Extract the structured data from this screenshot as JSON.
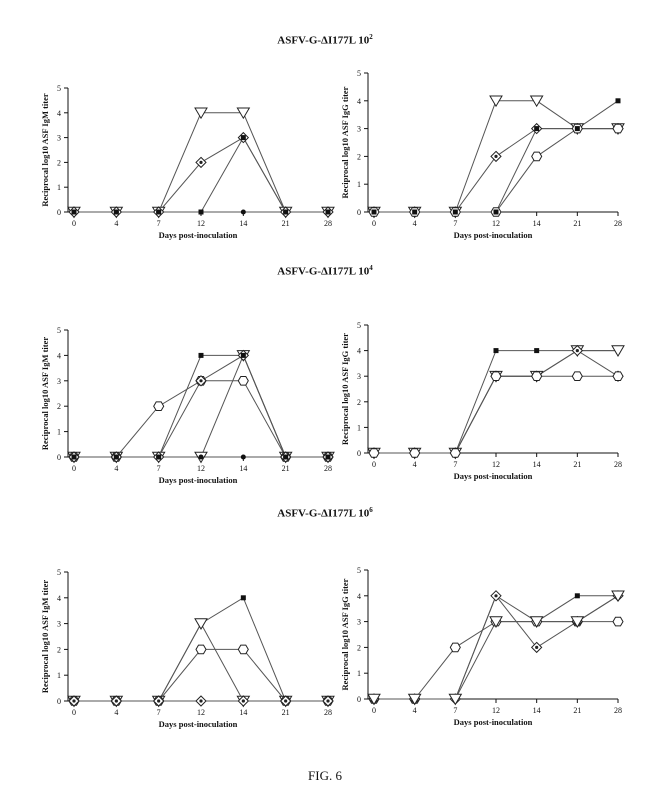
{
  "groups": [
    {
      "title": "ASFV-G-ΔI177L 10",
      "exp": "2"
    },
    {
      "title": "ASFV-G-ΔI177L 10",
      "exp": "4"
    },
    {
      "title": "ASFV-G-ΔI177L 10",
      "exp": "6"
    }
  ],
  "figure_label": "FIG. 6",
  "chart_data": [
    {
      "type": "line",
      "group": 0,
      "ylabel": "Reciprocal log10 ASF IgM titer",
      "xlabel": "Days post-inoculation",
      "x": [
        0,
        4,
        7,
        12,
        14,
        21,
        28
      ],
      "x_ticks": [
        "0",
        "4",
        "7",
        "12",
        "14",
        "21",
        "28"
      ],
      "ylim": [
        0,
        5
      ],
      "y_ticks": [
        "0",
        "1",
        "2",
        "3",
        "4",
        "5"
      ],
      "grid": false,
      "series": [
        {
          "marker": "triangle",
          "values": [
            0,
            0,
            0,
            4,
            4,
            0,
            0
          ]
        },
        {
          "marker": "diamond",
          "values": [
            0,
            0,
            0,
            2,
            3,
            0,
            0
          ]
        },
        {
          "marker": "square",
          "values": [
            0,
            0,
            0,
            0,
            3,
            0,
            0
          ]
        },
        {
          "marker": "circle",
          "values": [
            0,
            0,
            0,
            0,
            0,
            0,
            0
          ]
        }
      ]
    },
    {
      "type": "line",
      "group": 0,
      "ylabel": "Reciprocal log10 ASF IgG titer",
      "xlabel": "Days post-inoculation",
      "x": [
        0,
        4,
        7,
        12,
        14,
        21,
        28
      ],
      "x_ticks": [
        "0",
        "4",
        "7",
        "12",
        "14",
        "21",
        "28"
      ],
      "ylim": [
        0,
        5
      ],
      "y_ticks": [
        "0",
        "1",
        "2",
        "3",
        "4",
        "5"
      ],
      "grid": false,
      "series": [
        {
          "marker": "triangle",
          "values": [
            0,
            0,
            0,
            4,
            4,
            3,
            3
          ]
        },
        {
          "marker": "diamond",
          "values": [
            0,
            0,
            0,
            2,
            3,
            3,
            3
          ]
        },
        {
          "marker": "hexagon",
          "values": [
            0,
            0,
            0,
            0,
            2,
            3,
            3
          ]
        },
        {
          "marker": "square",
          "values": [
            0,
            0,
            0,
            0,
            3,
            3,
            4
          ]
        }
      ]
    },
    {
      "type": "line",
      "group": 1,
      "ylabel": "Reciprocal log10 ASF IgM titer",
      "xlabel": "Days post-inoculation",
      "x": [
        0,
        4,
        7,
        12,
        14,
        21,
        28
      ],
      "x_ticks": [
        "0",
        "4",
        "7",
        "12",
        "14",
        "21",
        "28"
      ],
      "ylim": [
        0,
        5
      ],
      "y_ticks": [
        "0",
        "1",
        "2",
        "3",
        "4",
        "5"
      ],
      "grid": false,
      "series": [
        {
          "marker": "triangle",
          "values": [
            0,
            0,
            0,
            0,
            4,
            0,
            0
          ]
        },
        {
          "marker": "hexagon",
          "values": [
            0,
            0,
            2,
            3,
            3,
            0,
            0
          ]
        },
        {
          "marker": "diamond",
          "values": [
            0,
            0,
            0,
            3,
            4,
            0,
            0
          ]
        },
        {
          "marker": "square",
          "values": [
            0,
            0,
            0,
            4,
            4,
            0,
            0
          ]
        },
        {
          "marker": "circle",
          "values": [
            0,
            0,
            0,
            0,
            0,
            0,
            0
          ]
        }
      ]
    },
    {
      "type": "line",
      "group": 1,
      "ylabel": "Reciprocal log10 ASF IgG titer",
      "xlabel": "Days post-inoculation",
      "x": [
        0,
        4,
        7,
        12,
        14,
        21,
        28
      ],
      "x_ticks": [
        "0",
        "4",
        "7",
        "12",
        "14",
        "21",
        "28"
      ],
      "ylim": [
        0,
        5
      ],
      "y_ticks": [
        "0",
        "1",
        "2",
        "3",
        "4",
        "5"
      ],
      "grid": false,
      "series": [
        {
          "marker": "square",
          "values": [
            0,
            0,
            0,
            4,
            4,
            4,
            4
          ]
        },
        {
          "marker": "triangle",
          "values": [
            0,
            0,
            0,
            3,
            3,
            4,
            4
          ]
        },
        {
          "marker": "diamond",
          "values": [
            0,
            0,
            0,
            3,
            3,
            4,
            3
          ]
        },
        {
          "marker": "hexagon",
          "values": [
            0,
            0,
            0,
            3,
            3,
            3,
            3
          ]
        }
      ]
    },
    {
      "type": "line",
      "group": 2,
      "ylabel": "Reciprocal log10 ASF IgM titer",
      "xlabel": "Days post-inoculation",
      "x": [
        0,
        4,
        7,
        12,
        14,
        21,
        28
      ],
      "x_ticks": [
        "0",
        "4",
        "7",
        "12",
        "14",
        "21",
        "28"
      ],
      "ylim": [
        0,
        5
      ],
      "y_ticks": [
        "0",
        "1",
        "2",
        "3",
        "4",
        "5"
      ],
      "grid": false,
      "series": [
        {
          "marker": "square",
          "values": [
            0,
            0,
            0,
            3,
            4,
            0,
            0
          ]
        },
        {
          "marker": "triangle",
          "values": [
            0,
            0,
            0,
            3,
            0,
            0,
            0
          ]
        },
        {
          "marker": "hexagon",
          "values": [
            0,
            0,
            0,
            2,
            2,
            0,
            0
          ]
        },
        {
          "marker": "diamond",
          "values": [
            0,
            0,
            0,
            0,
            0,
            0,
            0
          ]
        }
      ]
    },
    {
      "type": "line",
      "group": 2,
      "ylabel": "Reciprocal log10 ASF IgG titer",
      "xlabel": "Days post-inoculation",
      "x": [
        0,
        4,
        7,
        12,
        14,
        21,
        28
      ],
      "x_ticks": [
        "0",
        "4",
        "7",
        "12",
        "14",
        "21",
        "28"
      ],
      "ylim": [
        0,
        5
      ],
      "y_ticks": [
        "0",
        "1",
        "2",
        "3",
        "4",
        "5"
      ],
      "grid": false,
      "series": [
        {
          "marker": "hexagon",
          "values": [
            0,
            0,
            2,
            3,
            3,
            3,
            3
          ]
        },
        {
          "marker": "square",
          "values": [
            0,
            0,
            0,
            4,
            3,
            4,
            4
          ]
        },
        {
          "marker": "diamond",
          "values": [
            0,
            0,
            0,
            4,
            2,
            3,
            4
          ]
        },
        {
          "marker": "triangle",
          "values": [
            0,
            0,
            0,
            3,
            3,
            3,
            4
          ]
        }
      ]
    }
  ]
}
